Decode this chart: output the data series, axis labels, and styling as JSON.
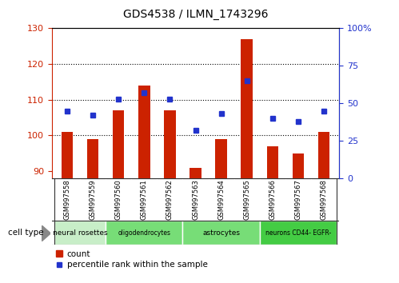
{
  "title": "GDS4538 / ILMN_1743296",
  "samples": [
    "GSM997558",
    "GSM997559",
    "GSM997560",
    "GSM997561",
    "GSM997562",
    "GSM997563",
    "GSM997564",
    "GSM997565",
    "GSM997566",
    "GSM997567",
    "GSM997568"
  ],
  "counts": [
    101,
    99,
    107,
    114,
    107,
    91,
    99,
    127,
    97,
    95,
    101
  ],
  "percentile": [
    45,
    42,
    53,
    57,
    53,
    32,
    43,
    65,
    40,
    38,
    45
  ],
  "bar_color": "#cc2200",
  "dot_color": "#2233cc",
  "left_ylim": [
    88,
    130
  ],
  "left_yticks": [
    90,
    100,
    110,
    120,
    130
  ],
  "right_ylim": [
    0,
    100
  ],
  "right_yticks": [
    0,
    25,
    50,
    75,
    100
  ],
  "right_yticklabels": [
    "0",
    "25",
    "50",
    "75",
    "100%"
  ],
  "cell_types": [
    {
      "label": "neural rosettes",
      "start": 0,
      "end": 2,
      "color": "#c8eec8"
    },
    {
      "label": "oligodendrocytes",
      "start": 2,
      "end": 5,
      "color": "#77dd77"
    },
    {
      "label": "astrocytes",
      "start": 5,
      "end": 8,
      "color": "#77dd77"
    },
    {
      "label": "neurons CD44- EGFR-",
      "start": 8,
      "end": 11,
      "color": "#44cc44"
    }
  ],
  "legend_count_label": "count",
  "legend_pct_label": "percentile rank within the sample",
  "cell_type_label": "cell type",
  "grid_yticks": [
    100,
    110,
    120
  ],
  "label_bg_color": "#cccccc",
  "spine_color": "#333333"
}
